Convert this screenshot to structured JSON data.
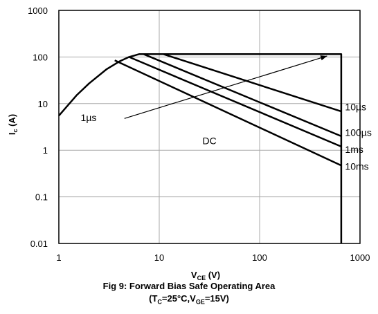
{
  "chart_data": {
    "type": "line",
    "title": "Fig 9: Forward Bias Safe Operating Area",
    "subtitle": {
      "open": "(T",
      "sub1": "C",
      "mid": "=25°C,V",
      "sub2": "GE",
      "close": "=15V)"
    },
    "xlabel": {
      "main": "V",
      "sub": "CE",
      "unit": " (V)"
    },
    "ylabel": {
      "main": "I",
      "sub": "c",
      "unit": " (A)"
    },
    "xscale": "log",
    "yscale": "log",
    "xlim": [
      1,
      1000
    ],
    "ylim": [
      0.01,
      1000
    ],
    "x_ticks": [
      {
        "value": 1,
        "label": "1"
      },
      {
        "value": 10,
        "label": "10"
      },
      {
        "value": 100,
        "label": "100"
      },
      {
        "value": 1000,
        "label": "1000"
      }
    ],
    "y_ticks": [
      {
        "value": 0.01,
        "label": "0.01"
      },
      {
        "value": 0.1,
        "label": "0.1"
      },
      {
        "value": 1,
        "label": "1"
      },
      {
        "value": 10,
        "label": "10"
      },
      {
        "value": 100,
        "label": "100"
      },
      {
        "value": 1000,
        "label": "1000"
      }
    ],
    "grid": true,
    "series": [
      {
        "name": "10µs",
        "points": [
          [
            11,
            115
          ],
          [
            650,
            6.8
          ]
        ]
      },
      {
        "name": "100µs",
        "points": [
          [
            7,
            115
          ],
          [
            650,
            2.0
          ]
        ]
      },
      {
        "name": "1ms",
        "points": [
          [
            5,
            100
          ],
          [
            650,
            1.2
          ]
        ]
      },
      {
        "name": "10ms",
        "points": [
          [
            3.6,
            85
          ],
          [
            650,
            0.47
          ]
        ]
      }
    ],
    "boundary": {
      "curve": [
        [
          1,
          5.5
        ],
        [
          1.5,
          15
        ],
        [
          2,
          27
        ],
        [
          3,
          55
        ],
        [
          4,
          80
        ],
        [
          5,
          100
        ],
        [
          6.3,
          115
        ]
      ],
      "current_limit": 115,
      "voltage_limit": 650,
      "bottom": 0.01
    },
    "annotations": [
      {
        "text": "1µs",
        "x": 1.65,
        "y": 5
      },
      {
        "text": "DC",
        "x": 27,
        "y": 1.6
      },
      {
        "text": "10µs",
        "x": 710,
        "y": 8.5
      },
      {
        "text": "100µs",
        "x": 710,
        "y": 2.4
      },
      {
        "text": "1ms",
        "x": 710,
        "y": 1.05
      },
      {
        "text": "10ms",
        "x": 710,
        "y": 0.45
      }
    ],
    "arrow": {
      "from": [
        4.5,
        4.8
      ],
      "to": [
        470,
        105
      ]
    }
  }
}
